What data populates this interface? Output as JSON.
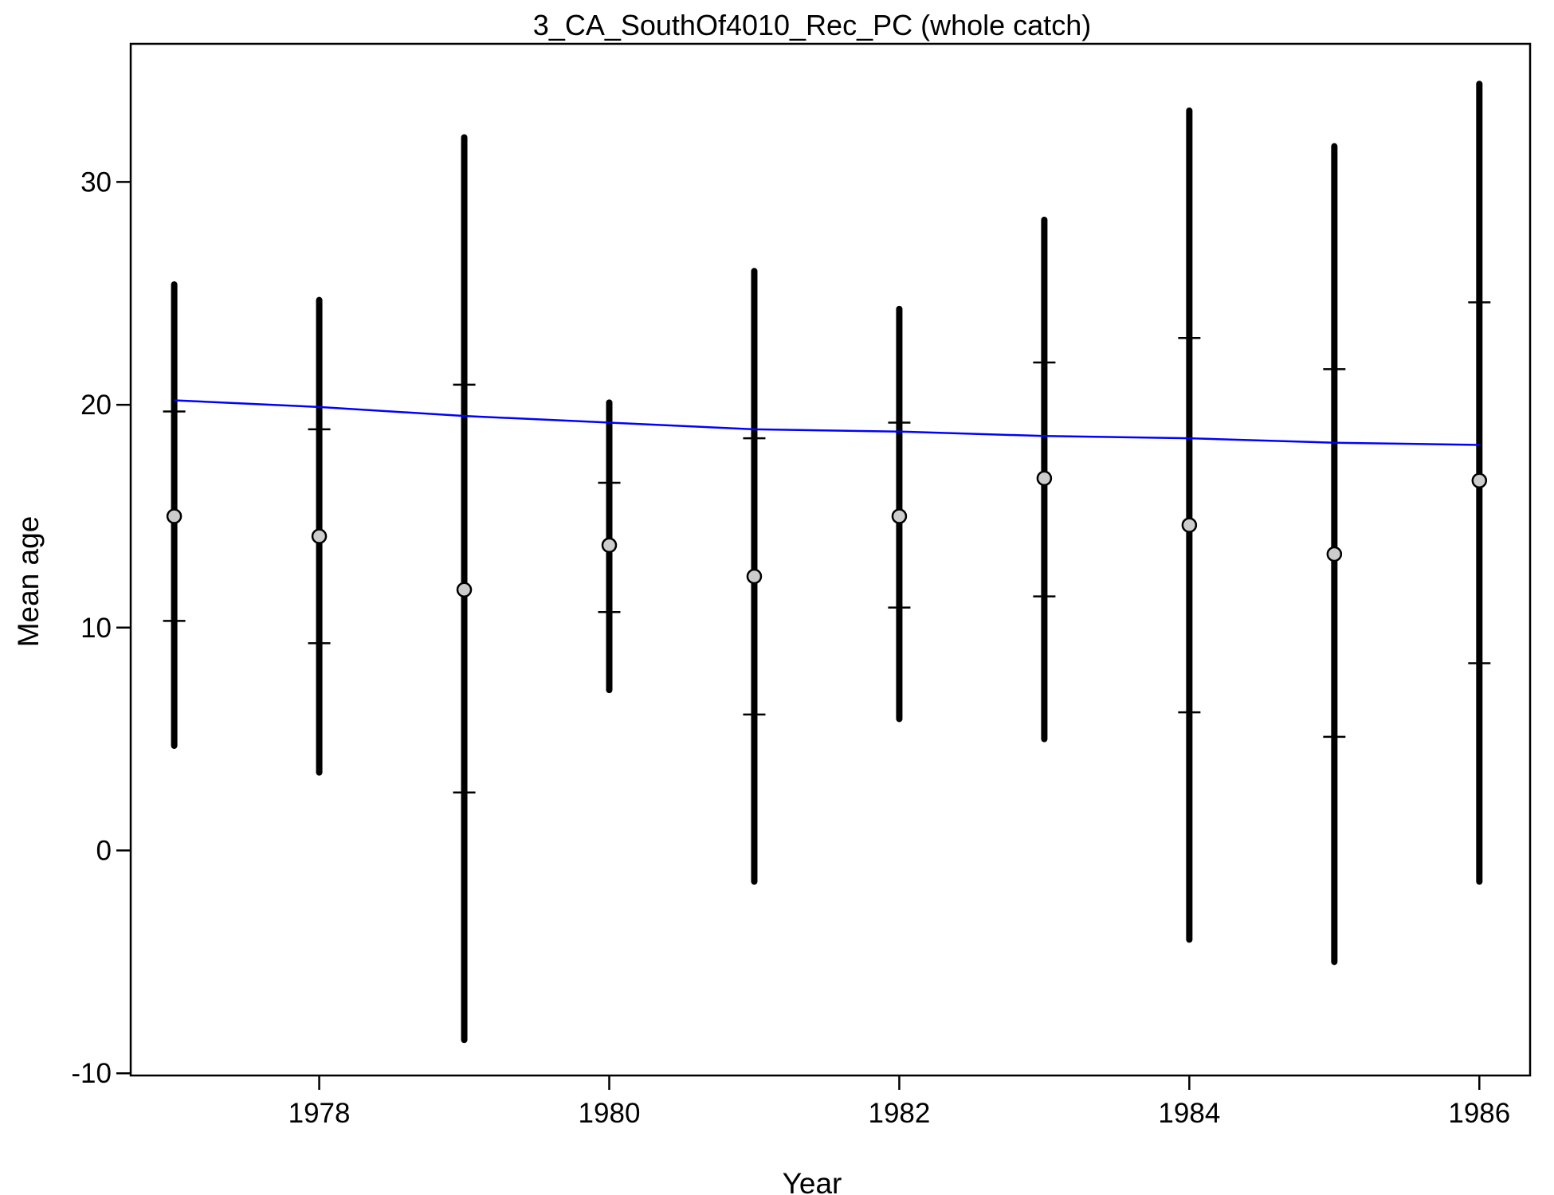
{
  "chart_data": {
    "type": "scatter",
    "title": "3_CA_SouthOf4010_Rec_PC (whole catch)",
    "xlabel": "Year",
    "ylabel": "Mean age",
    "xlim": [
      1976.7,
      1986.35
    ],
    "ylim": [
      -10.1,
      36.2
    ],
    "x_ticks": [
      1978,
      1980,
      1982,
      1984,
      1986
    ],
    "y_ticks": [
      -10,
      0,
      10,
      20,
      30
    ],
    "grid": false,
    "legend": "none",
    "colors": {
      "points": "#cccccc",
      "intervals": "#000000",
      "expected_line": "#0000ff"
    },
    "observed": [
      {
        "year": 1977,
        "mean": 15.0,
        "inner_low": 10.3,
        "inner_high": 19.7,
        "outer_low": 4.7,
        "outer_high": 25.4
      },
      {
        "year": 1978,
        "mean": 14.1,
        "inner_low": 9.3,
        "inner_high": 18.9,
        "outer_low": 3.5,
        "outer_high": 24.7
      },
      {
        "year": 1979,
        "mean": 11.7,
        "inner_low": 2.6,
        "inner_high": 20.9,
        "outer_low": -8.5,
        "outer_high": 32.0
      },
      {
        "year": 1980,
        "mean": 13.7,
        "inner_low": 10.7,
        "inner_high": 16.5,
        "outer_low": 7.2,
        "outer_high": 20.1
      },
      {
        "year": 1981,
        "mean": 12.3,
        "inner_low": 6.1,
        "inner_high": 18.5,
        "outer_low": -1.4,
        "outer_high": 26.0
      },
      {
        "year": 1982,
        "mean": 15.0,
        "inner_low": 10.9,
        "inner_high": 19.2,
        "outer_low": 5.9,
        "outer_high": 24.3
      },
      {
        "year": 1983,
        "mean": 16.7,
        "inner_low": 11.4,
        "inner_high": 21.9,
        "outer_low": 5.0,
        "outer_high": 28.3
      },
      {
        "year": 1984,
        "mean": 14.6,
        "inner_low": 6.2,
        "inner_high": 23.0,
        "outer_low": -4.0,
        "outer_high": 33.2
      },
      {
        "year": 1985,
        "mean": 13.3,
        "inner_low": 5.1,
        "inner_high": 21.6,
        "outer_low": -5.0,
        "outer_high": 31.6
      },
      {
        "year": 1986,
        "mean": 16.6,
        "inner_low": 8.4,
        "inner_high": 24.6,
        "outer_low": -1.4,
        "outer_high": 34.4
      }
    ],
    "expected": {
      "x": [
        1977,
        1978,
        1979,
        1980,
        1981,
        1982,
        1983,
        1984,
        1985,
        1986
      ],
      "y": [
        20.2,
        19.9,
        19.5,
        19.2,
        18.9,
        18.8,
        18.6,
        18.5,
        18.3,
        18.2
      ]
    }
  }
}
